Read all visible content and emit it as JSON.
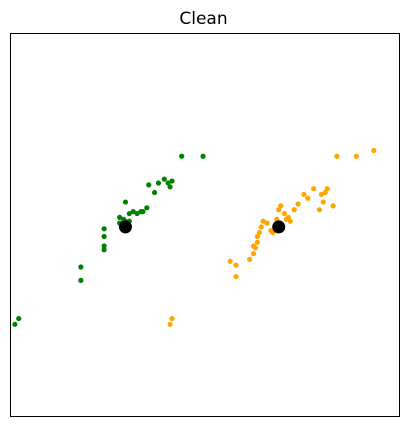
{
  "chart_data": {
    "type": "scatter",
    "title": "Clean",
    "xlabel": "",
    "ylabel": "",
    "xlim": [
      0,
      100
    ],
    "ylim": [
      0,
      100
    ],
    "axis_ticks": false,
    "grid": false,
    "legend": false,
    "series": [
      {
        "color": "#008000",
        "points": [
          [
            1.0,
            24.0
          ],
          [
            2.0,
            25.5
          ],
          [
            18.0,
            35.5
          ],
          [
            18.0,
            39.0
          ],
          [
            24.0,
            43.5
          ],
          [
            24.0,
            44.5
          ],
          [
            24.0,
            47.0
          ],
          [
            24.0,
            49.0
          ],
          [
            28.0,
            50.5
          ],
          [
            28.0,
            52.0
          ],
          [
            28.5,
            49.5
          ],
          [
            29.0,
            51.5
          ],
          [
            29.5,
            56.0
          ],
          [
            29.5,
            51.0
          ],
          [
            29.5,
            49.5
          ],
          [
            30.0,
            50.5
          ],
          [
            30.5,
            53.0
          ],
          [
            30.5,
            51.0
          ],
          [
            31.5,
            53.5
          ],
          [
            32.5,
            53.0
          ],
          [
            33.5,
            53.5
          ],
          [
            34.0,
            53.5
          ],
          [
            35.0,
            54.5
          ],
          [
            35.5,
            60.5
          ],
          [
            37.0,
            58.5
          ],
          [
            38.0,
            61.0
          ],
          [
            39.5,
            62.0
          ],
          [
            40.5,
            61.0
          ],
          [
            41.0,
            60.0
          ],
          [
            41.5,
            61.5
          ],
          [
            44.0,
            68.0
          ],
          [
            49.5,
            68.0
          ]
        ]
      },
      {
        "color": "#ffa500",
        "points": [
          [
            41.0,
            24.0
          ],
          [
            41.5,
            25.5
          ],
          [
            56.5,
            40.5
          ],
          [
            58.0,
            36.5
          ],
          [
            58.0,
            39.5
          ],
          [
            61.5,
            41.0
          ],
          [
            62.5,
            44.5
          ],
          [
            62.5,
            42.5
          ],
          [
            63.0,
            44.0
          ],
          [
            63.5,
            45.5
          ],
          [
            63.5,
            47.0
          ],
          [
            64.0,
            48.0
          ],
          [
            64.5,
            49.5
          ],
          [
            65.0,
            51.0
          ],
          [
            66.0,
            50.5
          ],
          [
            67.0,
            48.5
          ],
          [
            67.5,
            48.0
          ],
          [
            68.5,
            51.5
          ],
          [
            69.0,
            54.0
          ],
          [
            69.5,
            55.0
          ],
          [
            70.5,
            53.0
          ],
          [
            71.0,
            51.5
          ],
          [
            71.5,
            52.0
          ],
          [
            72.0,
            51.0
          ],
          [
            73.0,
            54.0
          ],
          [
            74.0,
            55.5
          ],
          [
            75.5,
            58.0
          ],
          [
            76.5,
            57.0
          ],
          [
            78.0,
            59.5
          ],
          [
            80.0,
            58.0
          ],
          [
            80.5,
            56.0
          ],
          [
            81.0,
            58.5
          ],
          [
            81.5,
            59.5
          ],
          [
            83.0,
            55.0
          ],
          [
            84.0,
            68.0
          ],
          [
            89.0,
            68.0
          ],
          [
            93.5,
            69.5
          ],
          [
            79.5,
            54.0
          ]
        ]
      }
    ],
    "centroids": {
      "color": "#000000",
      "points": [
        [
          29.5,
          49.5
        ],
        [
          69.0,
          49.5
        ]
      ]
    }
  }
}
